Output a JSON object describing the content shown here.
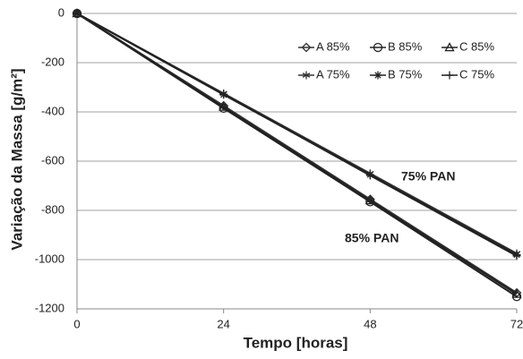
{
  "chart_data": {
    "type": "line",
    "x_label": "Tempo [horas]",
    "y_label": "Variação da Massa [g/m²]",
    "x": [
      0,
      24,
      48,
      72
    ],
    "series": [
      {
        "name": "A 85%",
        "color": "#333333",
        "marker": "diamond",
        "values": [
          0,
          -375,
          -755,
          -1135
        ]
      },
      {
        "name": "B 85%",
        "color": "#222222",
        "marker": "circle",
        "values": [
          0,
          -385,
          -765,
          -1150
        ]
      },
      {
        "name": "C 85%",
        "color": "#222222",
        "marker": "triangle",
        "values": [
          0,
          -380,
          -760,
          -1140
        ]
      },
      {
        "name": "A 75%",
        "color": "#333333",
        "marker": "asterisk",
        "values": [
          0,
          -325,
          -650,
          -975
        ]
      },
      {
        "name": "B 75%",
        "color": "#222222",
        "marker": "star",
        "values": [
          0,
          -330,
          -655,
          -980
        ]
      },
      {
        "name": "C 75%",
        "color": "#222222",
        "marker": "plus",
        "values": [
          0,
          -328,
          -658,
          -985
        ]
      }
    ],
    "annotations": [
      "75% PAN",
      "85% PAN"
    ],
    "xlim": [
      0,
      72
    ],
    "xticks": [
      0,
      24,
      48,
      72
    ],
    "ylim": [
      -1200,
      0
    ],
    "yticks": [
      0,
      -200,
      -400,
      -600,
      -800,
      -1000,
      -1200
    ],
    "grid": true
  }
}
